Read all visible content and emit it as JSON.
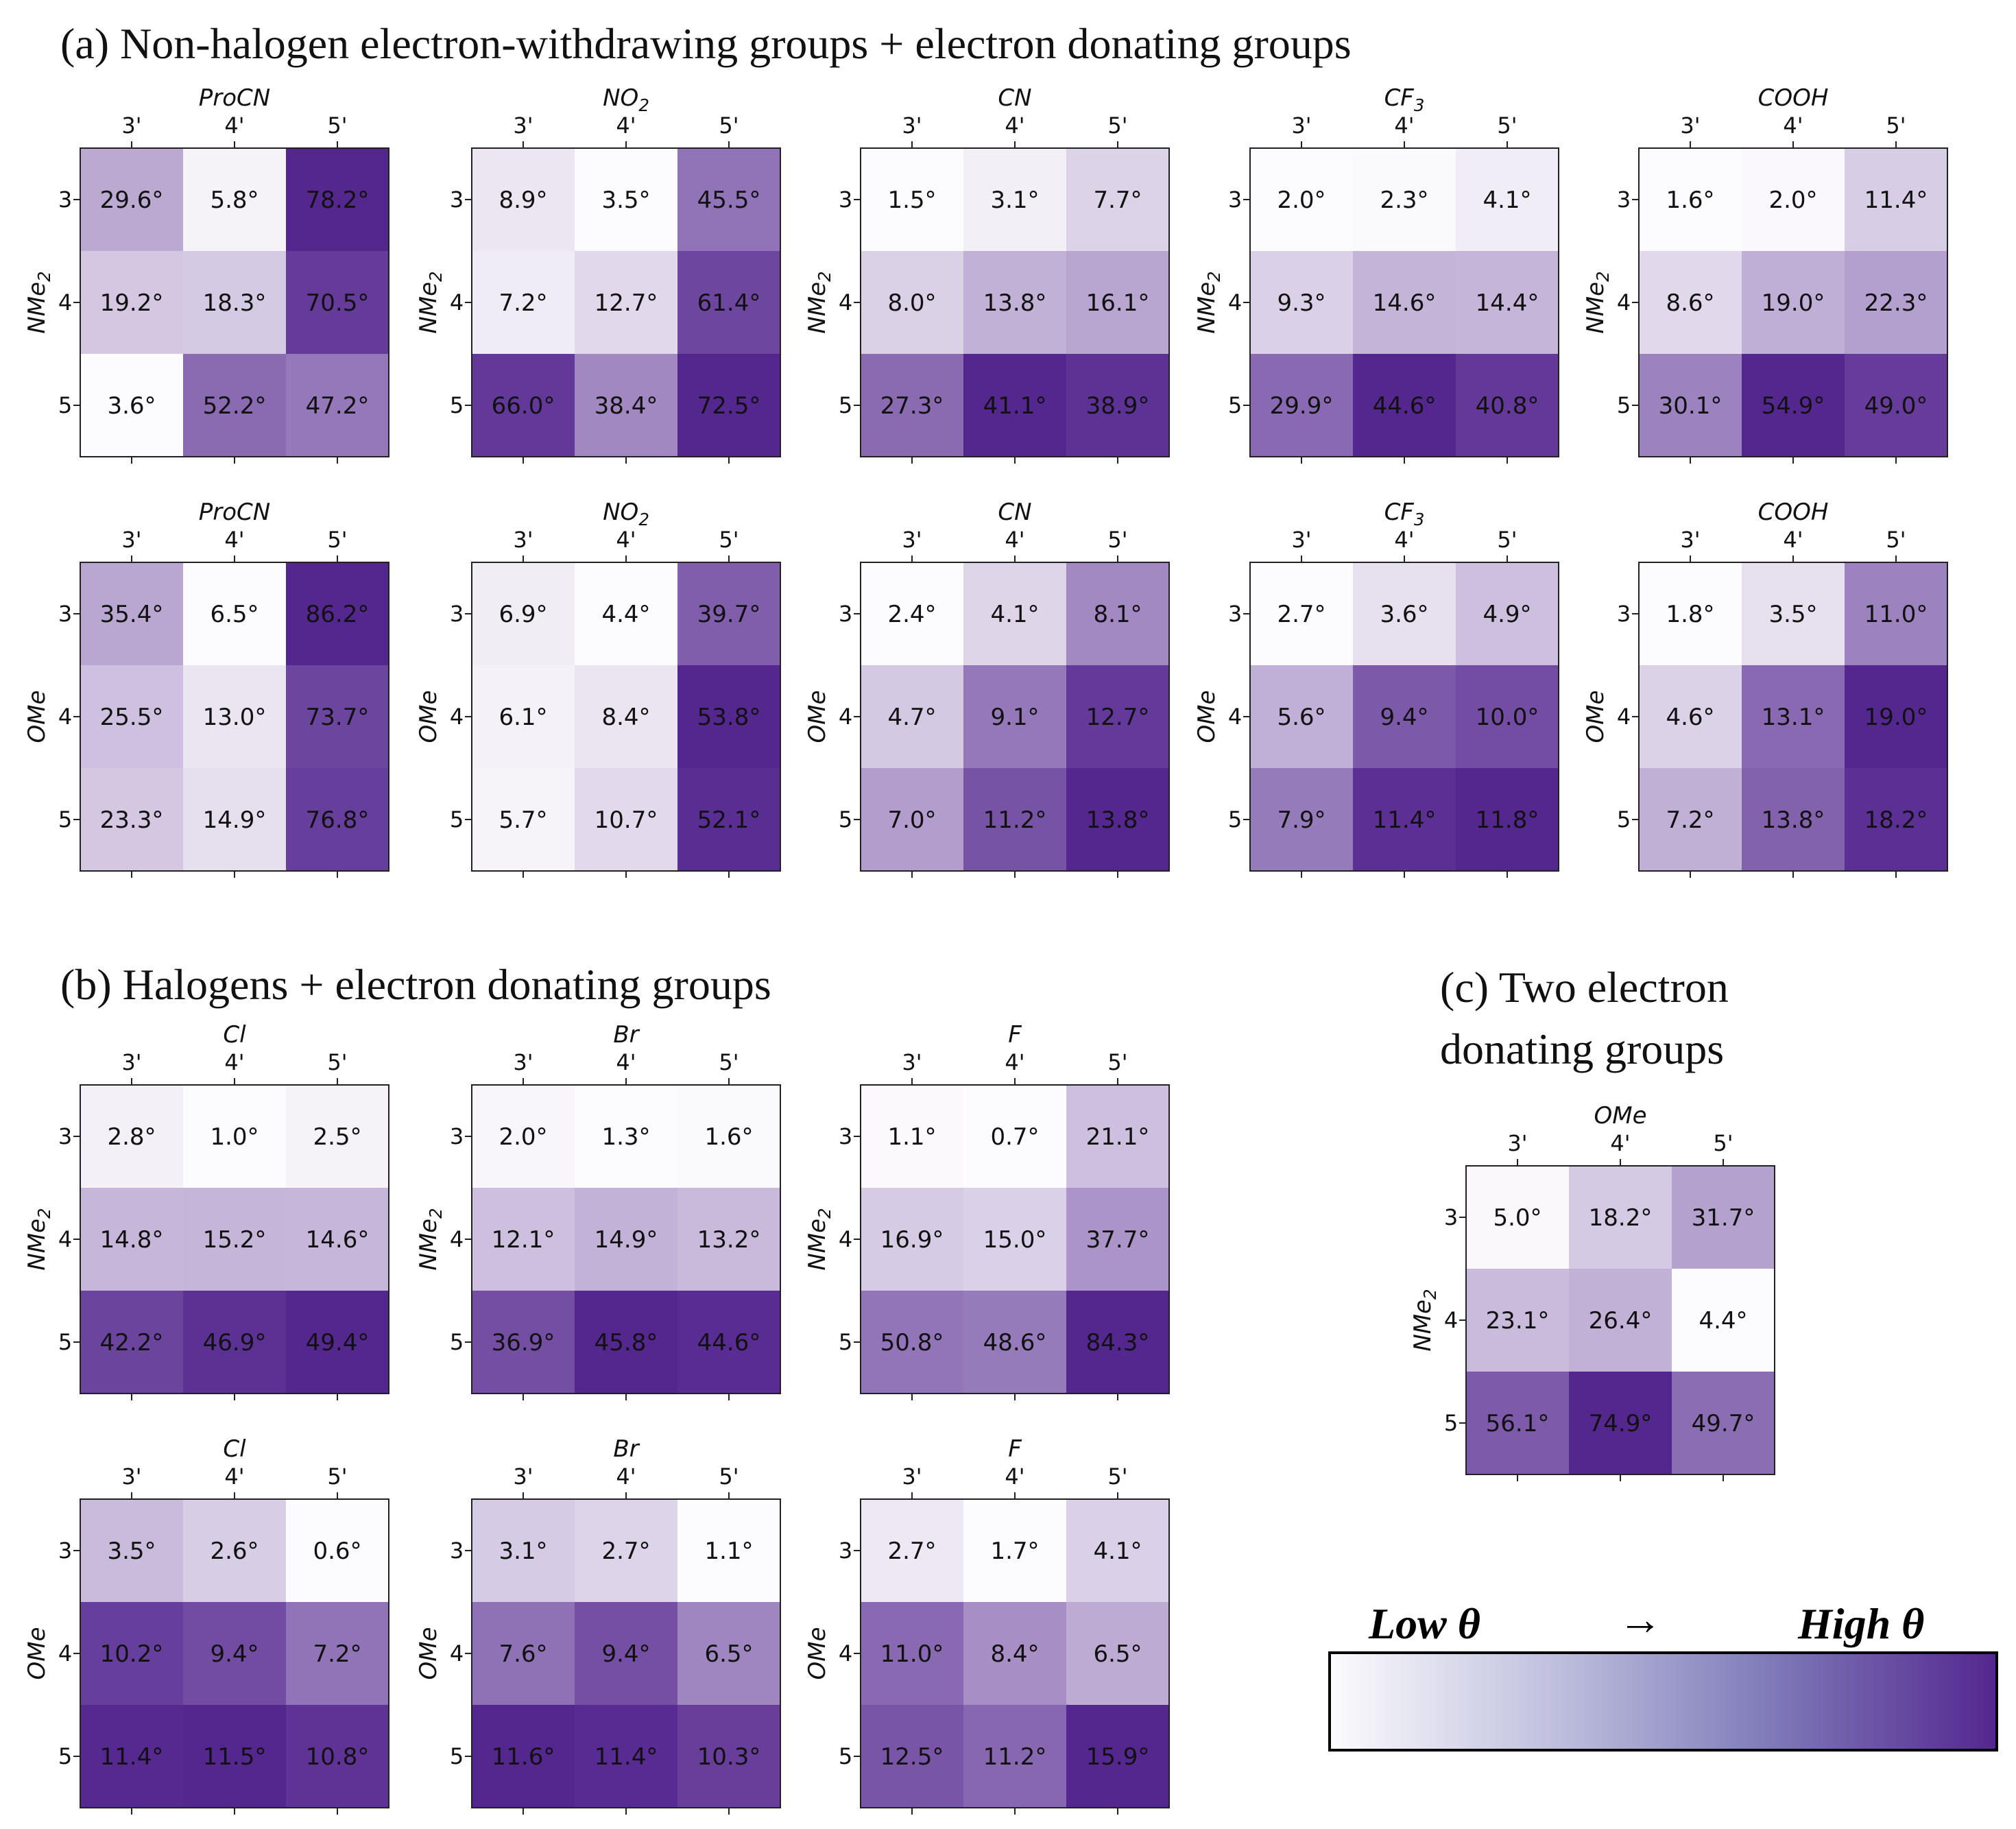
{
  "sections": {
    "a": {
      "title": "(a) Non-halogen electron-withdrawing groups + electron donating groups"
    },
    "b": {
      "title": "(b) Halogens + electron donating groups"
    },
    "c": {
      "title_line1": "(c) Two electron",
      "title_line2": "donating groups"
    }
  },
  "colorbar": {
    "low_label": "Low θ",
    "arrow": "→",
    "high_label": "High θ",
    "colors": [
      "#fcfbfd",
      "#54278f"
    ]
  },
  "chart_data": [
    {
      "type": "heatmap",
      "title": "ProCN",
      "ylabel": "NMe2",
      "xlabels": [
        "3'",
        "4'",
        "5'"
      ],
      "ylabels": [
        "3",
        "4",
        "5"
      ],
      "values": [
        [
          29.6,
          5.8,
          78.2
        ],
        [
          19.2,
          18.3,
          70.5
        ],
        [
          3.6,
          52.2,
          47.2
        ]
      ],
      "unit": "°"
    },
    {
      "type": "heatmap",
      "title": "NO2",
      "ylabel": "NMe2",
      "xlabels": [
        "3'",
        "4'",
        "5'"
      ],
      "ylabels": [
        "3",
        "4",
        "5"
      ],
      "values": [
        [
          8.9,
          3.5,
          45.5
        ],
        [
          7.2,
          12.7,
          61.4
        ],
        [
          66.0,
          38.4,
          72.5
        ]
      ],
      "unit": "°"
    },
    {
      "type": "heatmap",
      "title": "CN",
      "ylabel": "NMe2",
      "xlabels": [
        "3'",
        "4'",
        "5'"
      ],
      "ylabels": [
        "3",
        "4",
        "5"
      ],
      "values": [
        [
          1.5,
          3.1,
          7.7
        ],
        [
          8.0,
          13.8,
          16.1
        ],
        [
          27.3,
          41.1,
          38.9
        ]
      ],
      "unit": "°"
    },
    {
      "type": "heatmap",
      "title": "CF3",
      "ylabel": "NMe2",
      "xlabels": [
        "3'",
        "4'",
        "5'"
      ],
      "ylabels": [
        "3",
        "4",
        "5"
      ],
      "values": [
        [
          2.0,
          2.3,
          4.1
        ],
        [
          9.3,
          14.6,
          14.4
        ],
        [
          29.9,
          44.6,
          40.8
        ]
      ],
      "unit": "°"
    },
    {
      "type": "heatmap",
      "title": "COOH",
      "ylabel": "NMe2",
      "xlabels": [
        "3'",
        "4'",
        "5'"
      ],
      "ylabels": [
        "3",
        "4",
        "5"
      ],
      "values": [
        [
          1.6,
          2.0,
          11.4
        ],
        [
          8.6,
          19.0,
          22.3
        ],
        [
          30.1,
          54.9,
          49.0
        ]
      ],
      "unit": "°"
    },
    {
      "type": "heatmap",
      "title": "ProCN",
      "ylabel": "OMe",
      "xlabels": [
        "3'",
        "4'",
        "5'"
      ],
      "ylabels": [
        "3",
        "4",
        "5"
      ],
      "values": [
        [
          35.4,
          6.5,
          86.2
        ],
        [
          25.5,
          13.0,
          73.7
        ],
        [
          23.3,
          14.9,
          76.8
        ]
      ],
      "unit": "°"
    },
    {
      "type": "heatmap",
      "title": "NO2",
      "ylabel": "OMe",
      "xlabels": [
        "3'",
        "4'",
        "5'"
      ],
      "ylabels": [
        "3",
        "4",
        "5"
      ],
      "values": [
        [
          6.9,
          4.4,
          39.7
        ],
        [
          6.1,
          8.4,
          53.8
        ],
        [
          5.7,
          10.7,
          52.1
        ]
      ],
      "unit": "°"
    },
    {
      "type": "heatmap",
      "title": "CN",
      "ylabel": "OMe",
      "xlabels": [
        "3'",
        "4'",
        "5'"
      ],
      "ylabels": [
        "3",
        "4",
        "5"
      ],
      "values": [
        [
          2.4,
          4.1,
          8.1
        ],
        [
          4.7,
          9.1,
          12.7
        ],
        [
          7.0,
          11.2,
          13.8
        ]
      ],
      "unit": "°"
    },
    {
      "type": "heatmap",
      "title": "CF3",
      "ylabel": "OMe",
      "xlabels": [
        "3'",
        "4'",
        "5'"
      ],
      "ylabels": [
        "3",
        "4",
        "5"
      ],
      "values": [
        [
          2.7,
          3.6,
          4.9
        ],
        [
          5.6,
          9.4,
          10.0
        ],
        [
          7.9,
          11.4,
          11.8
        ]
      ],
      "unit": "°"
    },
    {
      "type": "heatmap",
      "title": "COOH",
      "ylabel": "OMe",
      "xlabels": [
        "3'",
        "4'",
        "5'"
      ],
      "ylabels": [
        "3",
        "4",
        "5"
      ],
      "values": [
        [
          1.8,
          3.5,
          11.0
        ],
        [
          4.6,
          13.1,
          19.0
        ],
        [
          7.2,
          13.8,
          18.2
        ]
      ],
      "unit": "°"
    },
    {
      "type": "heatmap",
      "title": "Cl",
      "ylabel": "NMe2",
      "xlabels": [
        "3'",
        "4'",
        "5'"
      ],
      "ylabels": [
        "3",
        "4",
        "5"
      ],
      "values": [
        [
          2.8,
          1.0,
          2.5
        ],
        [
          14.8,
          15.2,
          14.6
        ],
        [
          42.2,
          46.9,
          49.4
        ]
      ],
      "unit": "°"
    },
    {
      "type": "heatmap",
      "title": "Br",
      "ylabel": "NMe2",
      "xlabels": [
        "3'",
        "4'",
        "5'"
      ],
      "ylabels": [
        "3",
        "4",
        "5"
      ],
      "values": [
        [
          2.0,
          1.3,
          1.6
        ],
        [
          12.1,
          14.9,
          13.2
        ],
        [
          36.9,
          45.8,
          44.6
        ]
      ],
      "unit": "°"
    },
    {
      "type": "heatmap",
      "title": "F",
      "ylabel": "NMe2",
      "xlabels": [
        "3'",
        "4'",
        "5'"
      ],
      "ylabels": [
        "3",
        "4",
        "5"
      ],
      "values": [
        [
          1.1,
          0.7,
          21.1
        ],
        [
          16.9,
          15.0,
          37.7
        ],
        [
          50.8,
          48.6,
          84.3
        ]
      ],
      "unit": "°"
    },
    {
      "type": "heatmap",
      "title": "Cl",
      "ylabel": "OMe",
      "xlabels": [
        "3'",
        "4'",
        "5'"
      ],
      "ylabels": [
        "3",
        "4",
        "5"
      ],
      "values": [
        [
          3.5,
          2.6,
          0.6
        ],
        [
          10.2,
          9.4,
          7.2
        ],
        [
          11.4,
          11.5,
          10.8
        ]
      ],
      "unit": "°"
    },
    {
      "type": "heatmap",
      "title": "Br",
      "ylabel": "OMe",
      "xlabels": [
        "3'",
        "4'",
        "5'"
      ],
      "ylabels": [
        "3",
        "4",
        "5"
      ],
      "values": [
        [
          3.1,
          2.7,
          1.1
        ],
        [
          7.6,
          9.4,
          6.5
        ],
        [
          11.6,
          11.4,
          10.3
        ]
      ],
      "unit": "°"
    },
    {
      "type": "heatmap",
      "title": "F",
      "ylabel": "OMe",
      "xlabels": [
        "3'",
        "4'",
        "5'"
      ],
      "ylabels": [
        "3",
        "4",
        "5"
      ],
      "values": [
        [
          2.7,
          1.7,
          4.1
        ],
        [
          11.0,
          8.4,
          6.5
        ],
        [
          12.5,
          11.2,
          15.9
        ]
      ],
      "unit": "°"
    },
    {
      "type": "heatmap",
      "title": "OMe",
      "ylabel": "NMe2",
      "xlabels": [
        "3'",
        "4'",
        "5'"
      ],
      "ylabels": [
        "3",
        "4",
        "5"
      ],
      "values": [
        [
          5.0,
          18.2,
          31.7
        ],
        [
          23.1,
          26.4,
          4.4
        ],
        [
          56.1,
          74.9,
          49.7
        ]
      ],
      "unit": "°"
    }
  ]
}
